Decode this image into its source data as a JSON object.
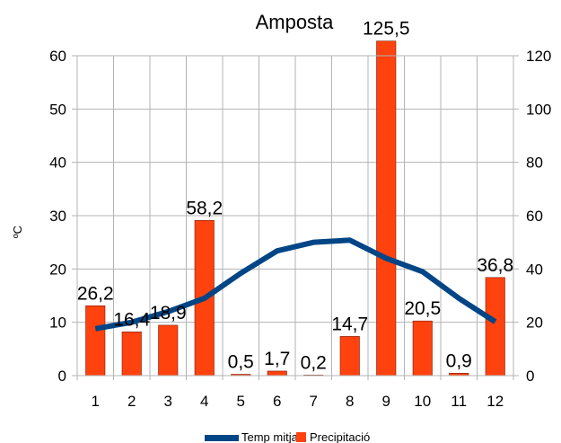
{
  "chart_data": {
    "type": "bar+line",
    "title": "Amposta",
    "ylabel_left": "ºC",
    "ylim_left": [
      0,
      60
    ],
    "ylim_right": [
      0,
      120
    ],
    "yticks_left": [
      "0",
      "10",
      "20",
      "30",
      "40",
      "50",
      "60"
    ],
    "yticks_right": [
      "0",
      "20",
      "40",
      "60",
      "80",
      "100",
      "120"
    ],
    "categories": [
      "1",
      "2",
      "3",
      "4",
      "5",
      "6",
      "7",
      "8",
      "9",
      "10",
      "11",
      "12"
    ],
    "precipitation": {
      "name": "Precipitació",
      "axis": "right",
      "color": "#ff420e",
      "values": [
        26.2,
        16.4,
        18.9,
        58.2,
        0.5,
        1.7,
        0.2,
        14.7,
        125.5,
        20.5,
        0.9,
        36.8
      ],
      "labels": [
        "26,2",
        "16,4",
        "18,9",
        "58,2",
        "0,5",
        "1,7",
        "0,2",
        "14,7",
        "125,5",
        "20,5",
        "0,9",
        "36,8"
      ]
    },
    "temperature": {
      "name": "Temp mitja",
      "axis": "left",
      "color": "#004586",
      "values": [
        8.8,
        10.0,
        12.0,
        14.5,
        19.2,
        23.4,
        25.0,
        25.4,
        22.0,
        19.5,
        14.5,
        10.1
      ]
    },
    "grid": true,
    "legend": "bottom"
  }
}
